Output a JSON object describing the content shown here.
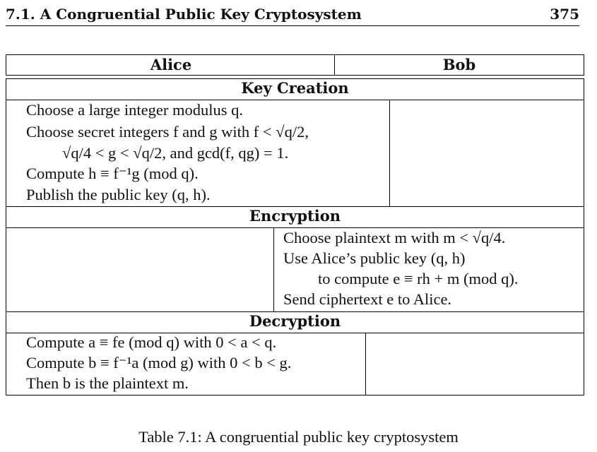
{
  "header": {
    "title": "7.1. A Congruential Public Key Cryptosystem",
    "page_number": "375"
  },
  "table": {
    "columns": {
      "alice": "Alice",
      "bob": "Bob"
    },
    "sections": {
      "key_creation": {
        "heading": "Key Creation",
        "alice": [
          "Choose a large integer modulus q.",
          "Choose secret integers f and g with f < √q/2,",
          "√q/4 < g < √q/2, and gcd(f, qg) = 1.",
          "Compute h ≡ f⁻¹g (mod q).",
          "Publish the public key (q, h)."
        ]
      },
      "encryption": {
        "heading": "Encryption",
        "bob": [
          "Choose plaintext m with m < √q/4.",
          "Use Alice’s public key (q, h)",
          "to compute e ≡ rh + m (mod q).",
          "Send ciphertext e to Alice."
        ]
      },
      "decryption": {
        "heading": "Decryption",
        "alice": [
          "Compute a ≡ fe (mod q) with 0 < a < q.",
          "Compute b ≡ f⁻¹a (mod g) with 0 < b < g.",
          "Then b is the plaintext m."
        ]
      }
    }
  },
  "caption": "Table 7.1: A congruential public key cryptosystem"
}
